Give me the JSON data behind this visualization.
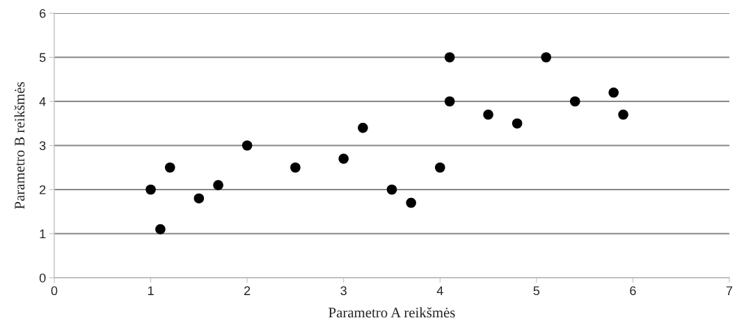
{
  "chart_data": {
    "type": "scatter",
    "xlabel": "Parametro A reikšmės",
    "ylabel": "Parametro B reikšmės",
    "x": [
      1,
      1.1,
      1.2,
      1.5,
      1.7,
      2,
      2.5,
      3,
      3.2,
      3.5,
      3.7,
      4,
      4.1,
      4.1,
      4.5,
      4.8,
      5.1,
      5.4,
      5.8,
      5.9
    ],
    "series": [
      {
        "color": "#000000",
        "values": [
          2,
          1.1,
          2.5,
          1.8,
          2.1,
          3,
          2.5,
          2.7,
          3.4,
          2,
          1.7,
          2.5,
          5,
          4,
          3.7,
          3.5,
          5,
          4,
          4.2,
          3.7
        ]
      }
    ],
    "xlim": [
      0,
      7
    ],
    "xticks": [
      0,
      1,
      2,
      3,
      4,
      5,
      6,
      7
    ],
    "ylim": [
      0,
      6
    ],
    "yticks": [
      0,
      1,
      2,
      3,
      4,
      5,
      6
    ],
    "grid": "y",
    "marker": "circle"
  }
}
